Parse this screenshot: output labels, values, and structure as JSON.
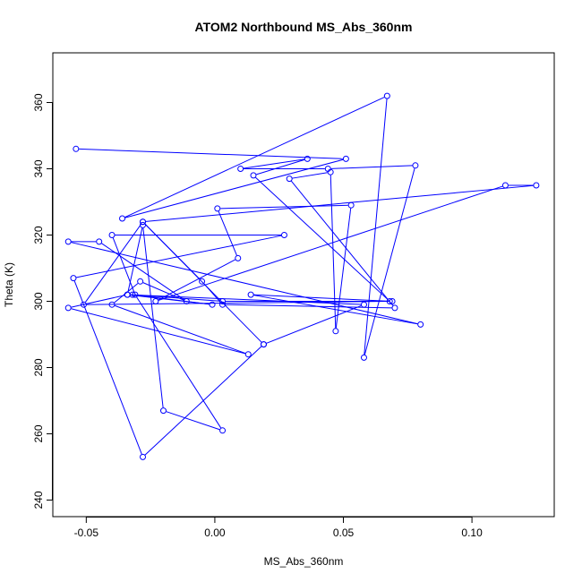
{
  "chart_data": {
    "type": "line",
    "title": "ATOM2 Northbound MS_Abs_360nm",
    "xlabel": "MS_Abs_360nm",
    "ylabel": "Theta (K)",
    "xlim": [
      -0.063,
      0.132
    ],
    "ylim": [
      235,
      375
    ],
    "xticks": [
      -0.05,
      0.0,
      0.05,
      0.1
    ],
    "xtick_labels": [
      "-0.05",
      "0.00",
      "0.05",
      "0.10"
    ],
    "yticks": [
      240,
      260,
      280,
      300,
      320,
      340,
      360
    ],
    "ytick_labels": [
      "240",
      "260",
      "280",
      "300",
      "320",
      "340",
      "360"
    ],
    "grid": false,
    "series": [
      {
        "color": "#0000ff",
        "marker": "open-circle",
        "x": [
          -0.054,
          0.051,
          -0.036,
          0.067,
          0.058,
          0.078,
          0.044,
          0.01,
          0.036,
          0.015,
          0.068,
          -0.051,
          -0.028,
          -0.005,
          0.003,
          0.07,
          0.029,
          0.045,
          0.047,
          0.053,
          0.001,
          0.009,
          -0.023,
          0.113,
          0.125,
          -0.028,
          0.019,
          -0.028,
          -0.055,
          0.027,
          -0.04,
          -0.031,
          0.003,
          -0.02,
          -0.028,
          -0.034,
          -0.001,
          -0.032,
          0.003,
          0.069,
          0.014,
          0.08,
          -0.057,
          -0.045,
          -0.011,
          -0.029,
          -0.04,
          0.013,
          -0.057,
          -0.034,
          0.058,
          0.019
        ],
        "y": [
          346,
          343,
          325,
          362,
          283,
          341,
          340,
          340,
          343,
          338,
          300,
          299,
          324,
          306,
          299,
          298,
          337,
          339,
          291,
          329,
          328,
          313,
          300,
          335,
          335,
          324,
          287,
          253,
          307,
          320,
          320,
          302,
          261,
          267,
          323,
          302,
          299,
          302,
          300,
          300,
          302,
          293,
          318,
          318,
          300,
          306,
          299,
          284,
          298,
          302,
          299,
          287
        ]
      }
    ]
  }
}
